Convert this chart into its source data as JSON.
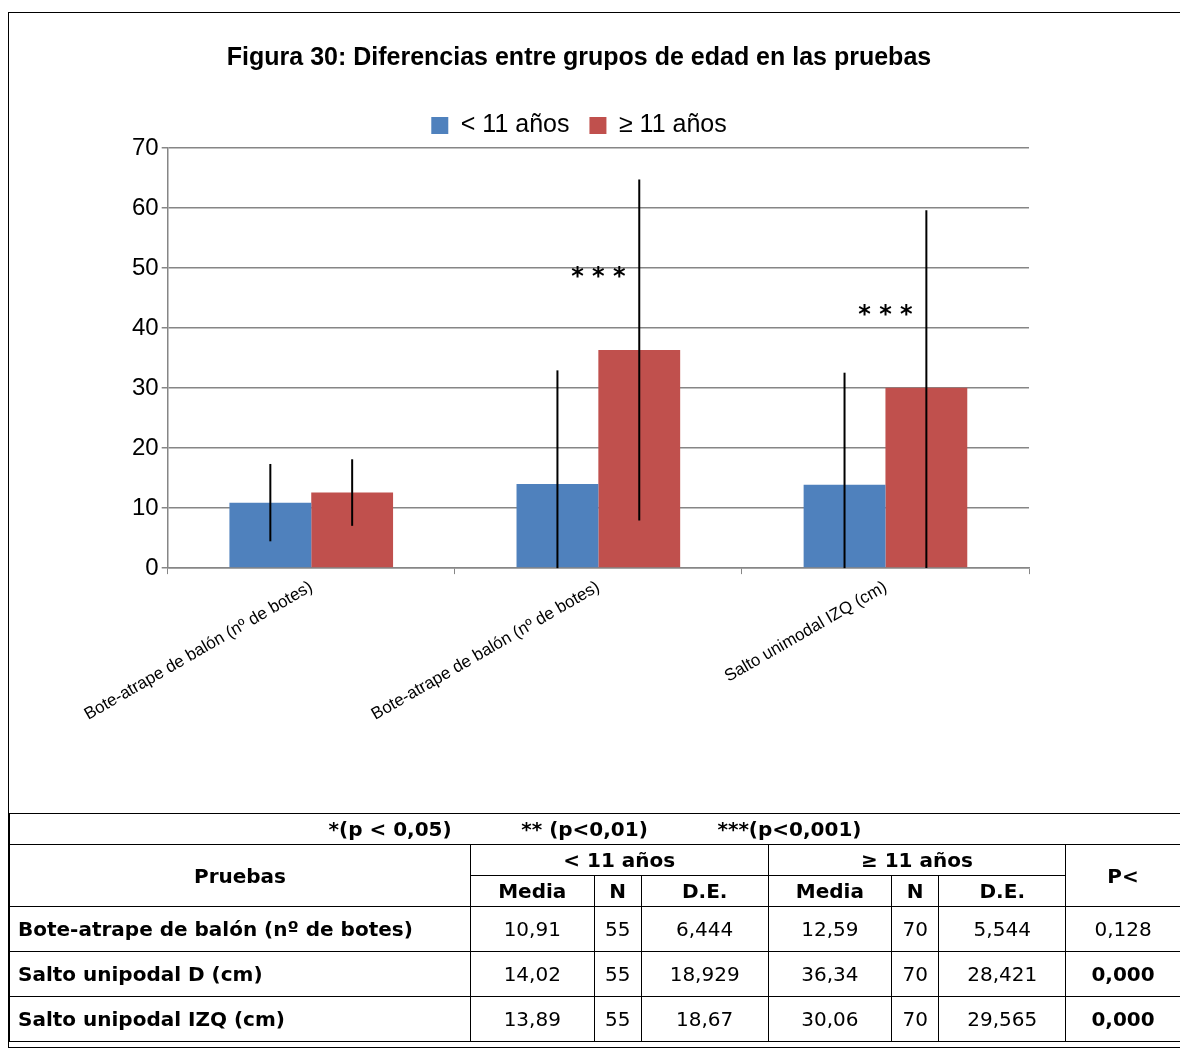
{
  "chart_data": [
    {
      "type": "bar",
      "title": "Figura 30: Diferencias entre grupos de edad en las pruebas",
      "categories": [
        "Bote-atrape de balón (nº de botes)",
        "Bote-atrape de balón (nº de botes)",
        "Salto unimodal IZQ (cm)"
      ],
      "series": [
        {
          "name": "< 11 años",
          "color": "#4f81bd",
          "values": [
            10.91,
            14.02,
            13.89
          ],
          "errors": [
            6.444,
            [
              0,
              32.95
            ],
            [
              0,
              32.56
            ]
          ]
        },
        {
          "name": "≥ 11 años",
          "color": "#c0504d",
          "values": [
            12.59,
            36.34,
            30.06
          ],
          "errors": [
            5.544,
            28.421,
            [
              0,
              59.63
            ]
          ]
        }
      ],
      "ylim": [
        0,
        70
      ],
      "yticks": [
        0,
        10,
        20,
        30,
        40,
        50,
        60,
        70
      ],
      "grid": "y",
      "legend": "top",
      "annotations": [
        "* * *",
        "* * *"
      ]
    },
    {
      "type": "other",
      "annotations": [
        "*(p < 0,05)",
        "** (p<0,01)",
        "***(p<0,001)",
        "Pruebas",
        "< 11 años",
        "≥ 11 años",
        "P<",
        "Media",
        "N",
        "D.E.",
        "Media",
        "N",
        "D.E.",
        "Bote-atrape de balón (nº de botes)",
        "10,91",
        "55",
        "6,444",
        "12,59",
        "70",
        "5,544",
        "0,128",
        "Salto unipodal D (cm)",
        "14,02",
        "55",
        "18,929",
        "36,34",
        "70",
        "28,421",
        "0,000",
        "Salto unipodal IZQ (cm)",
        "13,89",
        "55",
        "18,67",
        "30,06",
        "70",
        "29,565",
        "0,000"
      ]
    }
  ]
}
